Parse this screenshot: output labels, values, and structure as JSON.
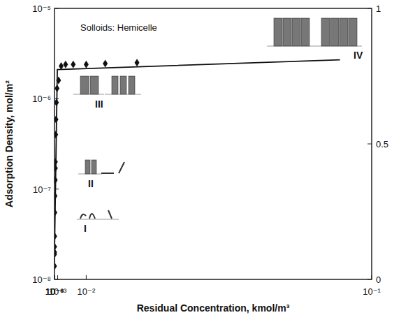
{
  "chart_data": {
    "type": "scatter",
    "log": "y",
    "xlabel": "Residual Concentration, kmol/m³",
    "ylabel": "Adsorption Density, mol/m²",
    "xlim": [
      1e-06,
      0.1
    ],
    "ylim": [
      1e-08,
      1e-05
    ],
    "y2lim": [
      0,
      1
    ],
    "xticks": [
      {
        "value": 1e-06,
        "label": "10⁻⁶"
      },
      {
        "value": 1e-05,
        "label": "10⁻⁵"
      },
      {
        "value": 0.0001,
        "label": "10⁻⁴"
      },
      {
        "value": 0.001,
        "label": "10⁻³"
      },
      {
        "value": 0.01,
        "label": "10⁻²"
      },
      {
        "value": 0.1,
        "label": "10⁻¹"
      }
    ],
    "yticks": [
      {
        "value": 1e-08,
        "label": "10⁻⁸"
      },
      {
        "value": 1e-07,
        "label": "10⁻⁷"
      },
      {
        "value": 1e-06,
        "label": "10⁻⁶"
      },
      {
        "value": 1e-05,
        "label": "10⁻⁵"
      }
    ],
    "y2ticks": [
      0,
      0.5,
      1
    ],
    "grid": false,
    "annotations": [
      "Solloids: Hemicelle",
      "I",
      "II",
      "III",
      "IV"
    ],
    "series": [
      {
        "type": "scatter",
        "marker": "diamond",
        "color": "#111111",
        "x": [
          7.1e-06,
          2.4e-05,
          2.4e-05,
          4.5e-05,
          5.9e-05,
          0.000107,
          0.00015,
          0.00023,
          0.00028,
          0.00028,
          0.00038,
          0.00047,
          0.00062,
          0.00081,
          0.0013,
          0.0021,
          0.0035,
          0.0059,
          0.01,
          0.016,
          0.026
        ],
        "values": [
          1.4e-08,
          1.9e-08,
          2e-08,
          2.3e-08,
          3e-08,
          5.5e-08,
          8.4e-08,
          1.26e-07,
          1.7e-07,
          2e-07,
          4e-07,
          5.9e-07,
          9.1e-07,
          1.3e-06,
          1.6e-06,
          2.3e-06,
          2.4e-06,
          2.4e-06,
          2.4e-06,
          2.45e-06,
          2.5e-06
        ]
      },
      {
        "type": "line",
        "line_style": "solid",
        "color": "#111111",
        "x": [
          6.3e-06,
          3.3e-05,
          0.00089,
          0.09
        ],
        "values": [
          1.3e-08,
          2.4e-08,
          2.1e-06,
          2.7e-06
        ]
      }
    ]
  }
}
